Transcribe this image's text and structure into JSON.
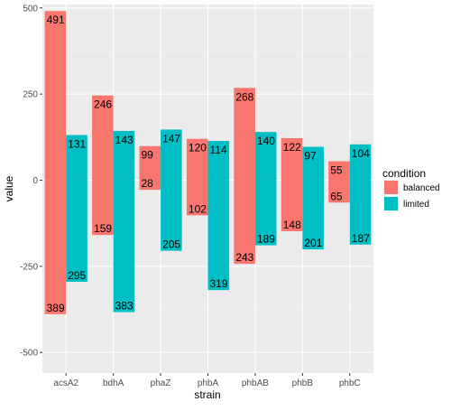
{
  "chart_data": {
    "type": "bar",
    "xlabel": "strain",
    "ylabel": "value",
    "ylim": [
      -560,
      510
    ],
    "yticks": [
      -500,
      -250,
      0,
      250,
      500
    ],
    "grid": true,
    "legend_position": "right",
    "legend_title": "condition",
    "categories": [
      "acsA2",
      "bdhA",
      "phaZ",
      "phbA",
      "phbAB",
      "phbB",
      "phbC"
    ],
    "series": [
      {
        "name": "balanced",
        "color": "#F8766D",
        "positive": [
          491,
          246,
          99,
          120,
          268,
          122,
          55
        ],
        "negative": [
          -389,
          -159,
          -28,
          -102,
          -243,
          -148,
          -65
        ]
      },
      {
        "name": "limited",
        "color": "#00BFC4",
        "positive": [
          131,
          143,
          147,
          114,
          140,
          97,
          104
        ],
        "negative": [
          -295,
          -383,
          -205,
          -319,
          -189,
          -201,
          -187
        ]
      }
    ]
  }
}
